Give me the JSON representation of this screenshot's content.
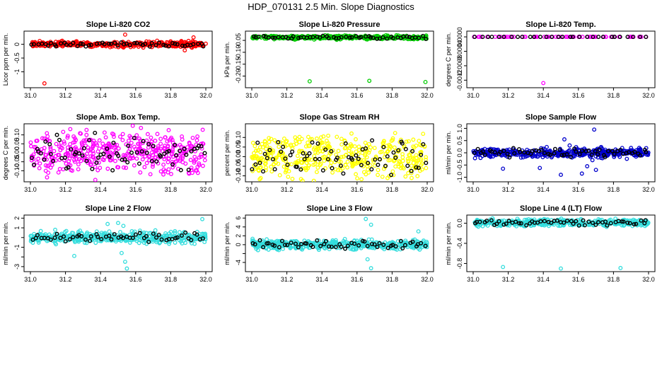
{
  "page": {
    "title": "HDP_070131  2.5 Min. Slope Diagnostics"
  },
  "chart_data": [
    {
      "type": "scatter",
      "title": "Slope Li-820 CO2",
      "ylabel": "Licor ppm per min.",
      "xlim": [
        31.0,
        32.0
      ],
      "ylim": [
        -1.5,
        0.4
      ],
      "x_ticks": [
        31.0,
        31.2,
        31.4,
        31.6,
        31.8,
        32.0
      ],
      "y_ticks": [
        -1.0,
        -0.5,
        0.0
      ],
      "y_tick_labels": [
        "-1",
        "-0.5",
        "0"
      ],
      "color": "#ff0000",
      "n_points": 420,
      "n_highlight": 55,
      "band": [
        -0.1,
        0.1
      ],
      "outliers": [
        [
          31.08,
          -1.42
        ],
        [
          31.54,
          0.35
        ],
        [
          31.88,
          -0.22
        ],
        [
          31.93,
          0.25
        ]
      ]
    },
    {
      "type": "scatter",
      "title": "Slope Li-820 Pressure",
      "ylabel": "kPa per min.",
      "xlim": [
        31.0,
        32.0
      ],
      "ylim": [
        -0.24,
        -0.02
      ],
      "x_ticks": [
        31.0,
        31.2,
        31.4,
        31.6,
        31.8,
        32.0
      ],
      "y_ticks": [
        -0.2,
        -0.15,
        -0.1,
        -0.05
      ],
      "y_tick_labels": [
        "-0.20",
        "-0.15",
        "-0.10",
        "-0.05"
      ],
      "color": "#00cc00",
      "n_points": 420,
      "n_highlight": 55,
      "band": [
        -0.045,
        -0.03
      ],
      "outliers": [
        [
          31.33,
          -0.222
        ],
        [
          31.67,
          -0.22
        ],
        [
          31.99,
          -0.225
        ]
      ]
    },
    {
      "type": "scatter",
      "title": "Slope Li-820 Temp.",
      "ylabel": "degrees C per min.",
      "xlim": [
        31.0,
        32.0
      ],
      "ylim": [
        -0.00135,
        0.0001
      ],
      "x_ticks": [
        31.0,
        31.2,
        31.4,
        31.6,
        31.8,
        32.0
      ],
      "y_ticks": [
        -0.0012,
        -0.0008,
        -0.0004,
        0.0
      ],
      "y_tick_labels": [
        "-0.0012",
        "-0.0008",
        "-0.0004",
        "0.0000"
      ],
      "color": "#ff00ff",
      "n_points": 80,
      "n_highlight": 30,
      "band": [
        0.0,
        0.0
      ],
      "outliers": [
        [
          31.4,
          -0.00128
        ]
      ]
    },
    {
      "type": "scatter",
      "title": "Slope Amb. Box Temp.",
      "ylabel": "degrees C per min.",
      "xlim": [
        31.0,
        32.0
      ],
      "ylim": [
        -0.15,
        0.15
      ],
      "x_ticks": [
        31.0,
        31.2,
        31.4,
        31.6,
        31.8,
        32.0
      ],
      "y_ticks": [
        -0.1,
        -0.05,
        0.0,
        0.05,
        0.1
      ],
      "y_tick_labels": [
        "-0.10",
        "-0.05",
        "0.00",
        "0.05",
        "0.10"
      ],
      "color": "#ff00ff",
      "n_points": 420,
      "n_highlight": 70,
      "band": [
        -0.12,
        0.12
      ],
      "outliers": []
    },
    {
      "type": "scatter",
      "title": "Slope Gas Stream RH",
      "ylabel": "percent per min.",
      "xlim": [
        31.0,
        32.0
      ],
      "ylim": [
        -0.12,
        0.16
      ],
      "x_ticks": [
        31.0,
        31.2,
        31.4,
        31.6,
        31.8,
        32.0
      ],
      "y_ticks": [
        -0.1,
        -0.05,
        0.0,
        0.05,
        0.1
      ],
      "y_tick_labels": [
        "-0.10",
        "-0.05",
        "0.00",
        "0.05",
        "0.10"
      ],
      "color": "#ffff00",
      "n_points": 420,
      "n_highlight": 70,
      "band": [
        -0.11,
        0.12
      ],
      "outliers": []
    },
    {
      "type": "scatter",
      "title": "Slope Sample Flow",
      "ylabel": "ml/min per min.",
      "xlim": [
        31.0,
        32.0
      ],
      "ylim": [
        -1.1,
        1.1
      ],
      "x_ticks": [
        31.0,
        31.2,
        31.4,
        31.6,
        31.8,
        32.0
      ],
      "y_ticks": [
        -1.0,
        -0.5,
        0.0,
        0.5,
        1.0
      ],
      "y_tick_labels": [
        "-1.0",
        "-0.5",
        "0.0",
        "0.5",
        "1.0"
      ],
      "color": "#0000cc",
      "n_points": 420,
      "n_highlight": 60,
      "band": [
        -0.2,
        0.2
      ],
      "outliers": [
        [
          31.17,
          -0.65
        ],
        [
          31.38,
          -0.62
        ],
        [
          31.5,
          -0.9
        ],
        [
          31.52,
          0.55
        ],
        [
          31.55,
          0.3
        ],
        [
          31.62,
          -0.85
        ],
        [
          31.65,
          -0.55
        ],
        [
          31.68,
          -0.3
        ],
        [
          31.7,
          -0.7
        ],
        [
          31.69,
          0.95
        ],
        [
          31.9,
          0.2
        ]
      ]
    },
    {
      "type": "scatter",
      "title": "Slope Line 2 Flow",
      "ylabel": "ml/min per min.",
      "xlim": [
        31.0,
        32.0
      ],
      "ylim": [
        -3.3,
        2.1
      ],
      "x_ticks": [
        31.0,
        31.2,
        31.4,
        31.6,
        31.8,
        32.0
      ],
      "y_ticks": [
        -3,
        -2,
        -1,
        0,
        1,
        2
      ],
      "y_tick_labels": [
        "-3",
        "",
        "-1",
        "",
        "1",
        "2"
      ],
      "color": "#33dddd",
      "n_points": 420,
      "n_highlight": 55,
      "band": [
        -0.6,
        0.6
      ],
      "outliers": [
        [
          31.25,
          -1.9
        ],
        [
          31.52,
          -1.6
        ],
        [
          31.54,
          -2.5
        ],
        [
          31.55,
          -3.2
        ],
        [
          31.5,
          1.5
        ],
        [
          31.53,
          1.2
        ],
        [
          31.44,
          1.4
        ],
        [
          31.98,
          1.9
        ]
      ]
    },
    {
      "type": "scatter",
      "title": "Slope Line 3 Flow",
      "ylabel": "ml/min per min.",
      "xlim": [
        31.0,
        32.0
      ],
      "ylim": [
        -5.6,
        6.2
      ],
      "x_ticks": [
        31.0,
        31.2,
        31.4,
        31.6,
        31.8,
        32.0
      ],
      "y_ticks": [
        -4,
        -2,
        0,
        2,
        4,
        6
      ],
      "y_tick_labels": [
        "-4",
        "",
        "0",
        "2",
        "4",
        "6"
      ],
      "color": "#33dddd",
      "n_points": 420,
      "n_highlight": 55,
      "band": [
        -1.2,
        1.2
      ],
      "outliers": [
        [
          31.65,
          5.8
        ],
        [
          31.68,
          4.5
        ],
        [
          31.66,
          -3.3
        ],
        [
          31.68,
          -5.3
        ],
        [
          31.95,
          3.0
        ]
      ]
    },
    {
      "type": "scatter",
      "title": "Slope Line 4 (LT) Flow",
      "ylabel": "ml/min per min.",
      "xlim": [
        31.0,
        32.0
      ],
      "ylim": [
        -0.92,
        0.12
      ],
      "x_ticks": [
        31.0,
        31.2,
        31.4,
        31.6,
        31.8,
        32.0
      ],
      "y_ticks": [
        -0.8,
        -0.4,
        0.0
      ],
      "y_tick_labels": [
        "-0.8",
        "-0.4",
        "0.0"
      ],
      "color": "#33dddd",
      "n_points": 420,
      "n_highlight": 55,
      "band": [
        -0.06,
        0.08
      ],
      "outliers": [
        [
          31.17,
          -0.87
        ],
        [
          31.5,
          -0.9
        ],
        [
          31.84,
          -0.89
        ]
      ]
    }
  ]
}
